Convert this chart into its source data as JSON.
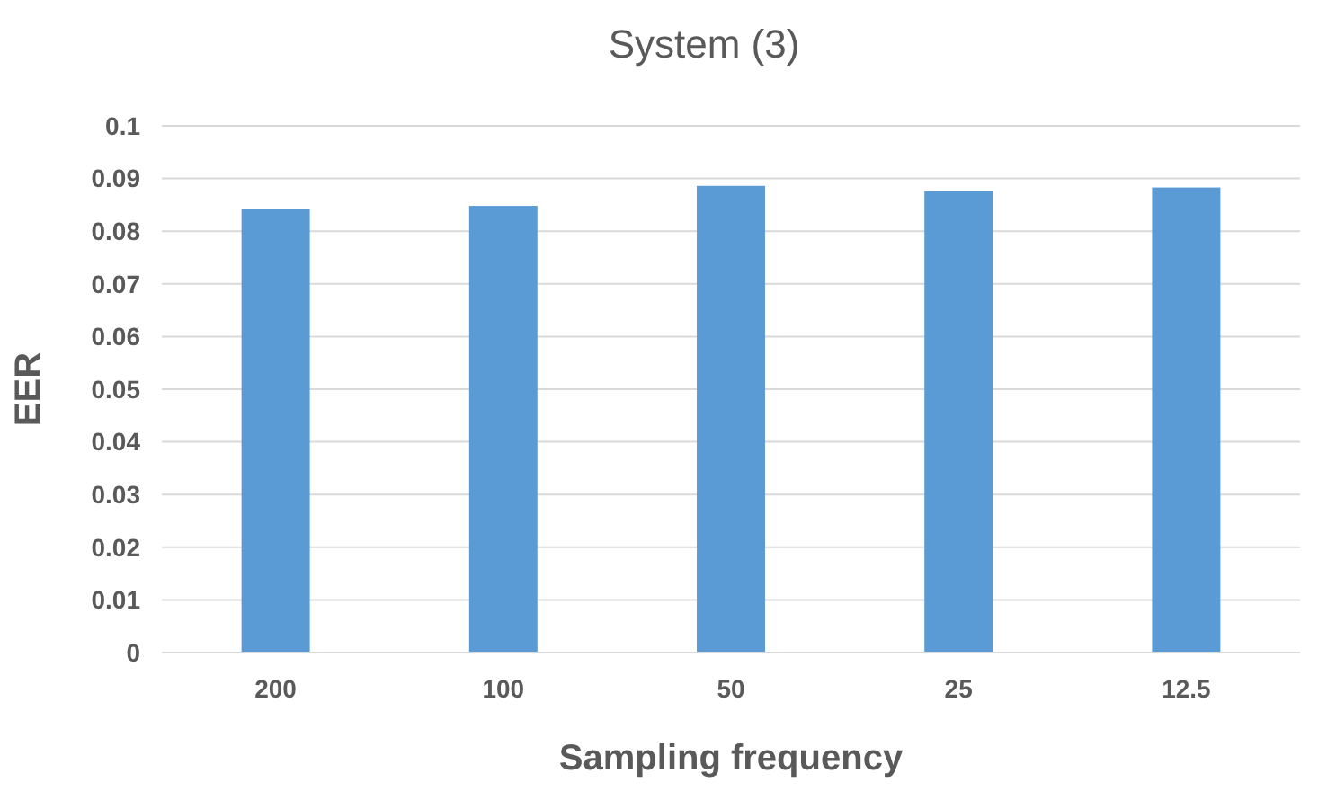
{
  "chart_data": {
    "type": "bar",
    "title": "System (3)",
    "xlabel": "Sampling frequency",
    "ylabel": "EER",
    "categories": [
      "200",
      "100",
      "50",
      "25",
      "12.5"
    ],
    "values": [
      0.0843,
      0.0848,
      0.0886,
      0.0876,
      0.0883
    ],
    "color": "#5b9bd5",
    "ylim": [
      0,
      0.1
    ],
    "yticks": [
      {
        "value": 0,
        "label": "0"
      },
      {
        "value": 0.01,
        "label": "0.01"
      },
      {
        "value": 0.02,
        "label": "0.02"
      },
      {
        "value": 0.03,
        "label": "0.03"
      },
      {
        "value": 0.04,
        "label": "0.04"
      },
      {
        "value": 0.05,
        "label": "0.05"
      },
      {
        "value": 0.06,
        "label": "0.06"
      },
      {
        "value": 0.07,
        "label": "0.07"
      },
      {
        "value": 0.08,
        "label": "0.08"
      },
      {
        "value": 0.09,
        "label": "0.09"
      },
      {
        "value": 0.1,
        "label": "0.1"
      }
    ],
    "grid": "y"
  }
}
